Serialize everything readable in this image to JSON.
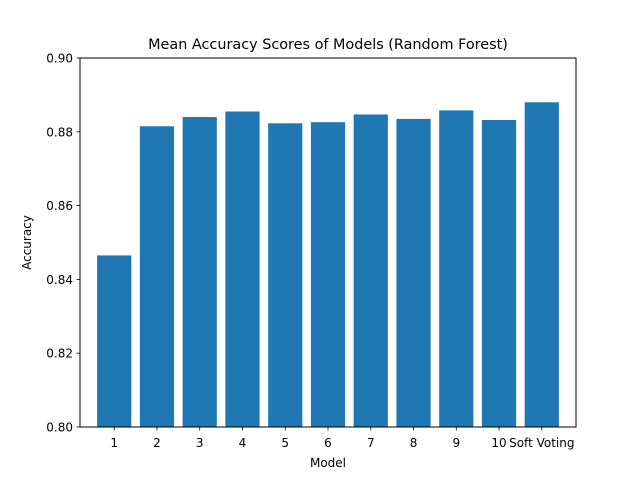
{
  "chart_data": {
    "type": "bar",
    "title": "Mean Accuracy Scores of Models (Random Forest)",
    "xlabel": "Model",
    "ylabel": "Accuracy",
    "categories": [
      "1",
      "2",
      "3",
      "4",
      "5",
      "6",
      "7",
      "8",
      "9",
      "10",
      "Soft Voting"
    ],
    "values": [
      0.8465,
      0.8815,
      0.884,
      0.8855,
      0.8823,
      0.8826,
      0.8847,
      0.8835,
      0.8858,
      0.8832,
      0.888
    ],
    "ylim": [
      0.8,
      0.9
    ],
    "yticks": [
      "0.80",
      "0.82",
      "0.84",
      "0.86",
      "0.88",
      "0.90"
    ],
    "ytick_values": [
      0.8,
      0.82,
      0.84,
      0.86,
      0.88,
      0.9
    ],
    "bar_color": "#1f77b4",
    "grid": false,
    "legend": "none"
  }
}
